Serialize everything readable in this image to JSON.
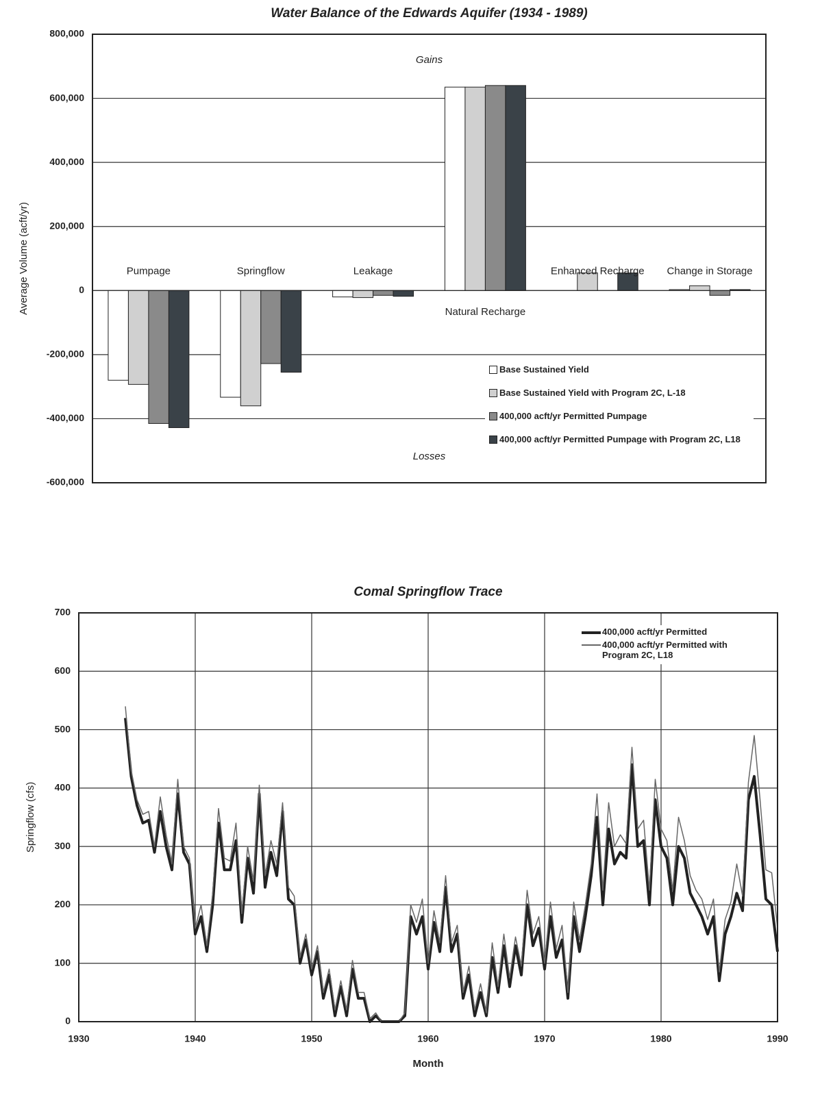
{
  "chart_data": [
    {
      "type": "bar",
      "title": "Water Balance of the Edwards Aquifer (1934 - 1989)",
      "ylabel": "Average Volume (acft/yr)",
      "annotations": [
        "Gains",
        "Losses"
      ],
      "categories": [
        "Pumpage",
        "Springflow",
        "Leakage",
        "Natural Recharge",
        "Enhanced Recharge",
        "Change in Storage"
      ],
      "series": [
        {
          "name": "Base Sustained Yield",
          "color": "#ffffff",
          "values": [
            -280000,
            -333000,
            -20000,
            635000,
            0,
            3000
          ]
        },
        {
          "name": "Base Sustained Yield with Program 2C, L-18",
          "color": "#d0d0d0",
          "values": [
            -293000,
            -360000,
            -22000,
            635000,
            55000,
            15000
          ]
        },
        {
          "name": "400,000 acft/yr Permitted Pumpage",
          "color": "#8a8a8a",
          "values": [
            -415000,
            -228000,
            -15000,
            640000,
            0,
            -15000
          ]
        },
        {
          "name": "400,000 acft/yr Permitted Pumpage with Program 2C, L18",
          "color": "#3a4248",
          "values": [
            -428000,
            -255000,
            -18000,
            640000,
            55000,
            3000
          ]
        }
      ],
      "ylim": [
        -600000,
        800000
      ],
      "yticks": [
        {
          "value": -600000,
          "label": "-600,000"
        },
        {
          "value": -400000,
          "label": "-400,000"
        },
        {
          "value": -200000,
          "label": "-200,000"
        },
        0,
        {
          "value": 200000,
          "label": "200,000"
        },
        {
          "value": 400000,
          "label": "400,000"
        },
        {
          "value": 600000,
          "label": "600,000"
        },
        {
          "value": 800000,
          "label": "800,000"
        }
      ],
      "grid": true,
      "legend": "lower right"
    },
    {
      "type": "line",
      "title": "Comal Springflow Trace",
      "xlabel": "Month",
      "ylabel": "Springflow (cfs)",
      "x": [
        1934,
        1934.5,
        1935,
        1935.5,
        1936,
        1936.5,
        1937,
        1937.5,
        1938,
        1938.5,
        1939,
        1939.5,
        1940,
        1940.5,
        1941,
        1941.5,
        1942,
        1942.5,
        1943,
        1943.5,
        1944,
        1944.5,
        1945,
        1945.5,
        1946,
        1946.5,
        1947,
        1947.5,
        1948,
        1948.5,
        1949,
        1949.5,
        1950,
        1950.5,
        1951,
        1951.5,
        1952,
        1952.5,
        1953,
        1953.5,
        1954,
        1954.5,
        1955,
        1955.5,
        1956,
        1956.5,
        1957,
        1957.5,
        1958,
        1958.5,
        1959,
        1959.5,
        1960,
        1960.5,
        1961,
        1961.5,
        1962,
        1962.5,
        1963,
        1963.5,
        1964,
        1964.5,
        1965,
        1965.5,
        1966,
        1966.5,
        1967,
        1967.5,
        1968,
        1968.5,
        1969,
        1969.5,
        1970,
        1970.5,
        1971,
        1971.5,
        1972,
        1972.5,
        1973,
        1973.5,
        1974,
        1974.5,
        1975,
        1975.5,
        1976,
        1976.5,
        1977,
        1977.5,
        1978,
        1978.5,
        1979,
        1979.5,
        1980,
        1980.5,
        1981,
        1981.5,
        1982,
        1982.5,
        1983,
        1983.5,
        1984,
        1984.5,
        1985,
        1985.5,
        1986,
        1986.5,
        1987,
        1987.5,
        1988,
        1988.5,
        1989,
        1989.5,
        1990
      ],
      "series": [
        {
          "name": "400,000 acft/yr Permitted",
          "color": "#222222",
          "values": [
            520,
            420,
            370,
            340,
            345,
            290,
            360,
            300,
            260,
            390,
            290,
            270,
            150,
            180,
            120,
            200,
            340,
            260,
            260,
            310,
            170,
            280,
            220,
            390,
            230,
            290,
            250,
            360,
            210,
            200,
            100,
            140,
            80,
            120,
            40,
            80,
            10,
            60,
            10,
            90,
            40,
            40,
            0,
            10,
            0,
            0,
            0,
            0,
            10,
            180,
            150,
            180,
            90,
            170,
            120,
            230,
            120,
            150,
            40,
            80,
            10,
            50,
            10,
            110,
            50,
            130,
            60,
            130,
            80,
            200,
            130,
            160,
            90,
            180,
            110,
            140,
            40,
            180,
            120,
            180,
            250,
            350,
            200,
            330,
            270,
            290,
            280,
            440,
            300,
            310,
            200,
            380,
            300,
            280,
            200,
            300,
            280,
            220,
            200,
            180,
            150,
            180,
            70,
            150,
            180,
            220,
            190,
            380,
            420,
            320,
            210,
            200,
            120
          ]
        },
        {
          "name": "400,000 acft/yr Permitted with Program 2C, L18",
          "color": "#666666",
          "values": [
            540,
            430,
            380,
            355,
            360,
            300,
            385,
            320,
            270,
            415,
            300,
            280,
            160,
            200,
            130,
            220,
            365,
            280,
            275,
            340,
            185,
            300,
            240,
            405,
            250,
            310,
            270,
            375,
            230,
            215,
            110,
            150,
            90,
            130,
            50,
            90,
            20,
            70,
            20,
            105,
            50,
            50,
            5,
            15,
            0,
            0,
            0,
            0,
            15,
            200,
            170,
            210,
            100,
            190,
            135,
            250,
            135,
            165,
            50,
            95,
            20,
            65,
            15,
            135,
            60,
            150,
            75,
            145,
            95,
            225,
            150,
            180,
            100,
            205,
            125,
            165,
            50,
            205,
            140,
            200,
            270,
            390,
            225,
            375,
            300,
            320,
            305,
            470,
            330,
            345,
            225,
            415,
            330,
            310,
            225,
            350,
            310,
            250,
            225,
            210,
            175,
            210,
            85,
            175,
            205,
            270,
            215,
            410,
            490,
            380,
            260,
            255,
            160
          ]
        }
      ],
      "xlim": [
        1930,
        1990
      ],
      "xticks": [
        1930,
        1940,
        1950,
        1960,
        1970,
        1980,
        1990
      ],
      "ylim": [
        0,
        700
      ],
      "yticks": [
        0,
        100,
        200,
        300,
        400,
        500,
        600,
        700
      ],
      "grid": true,
      "legend": "upper right"
    }
  ]
}
